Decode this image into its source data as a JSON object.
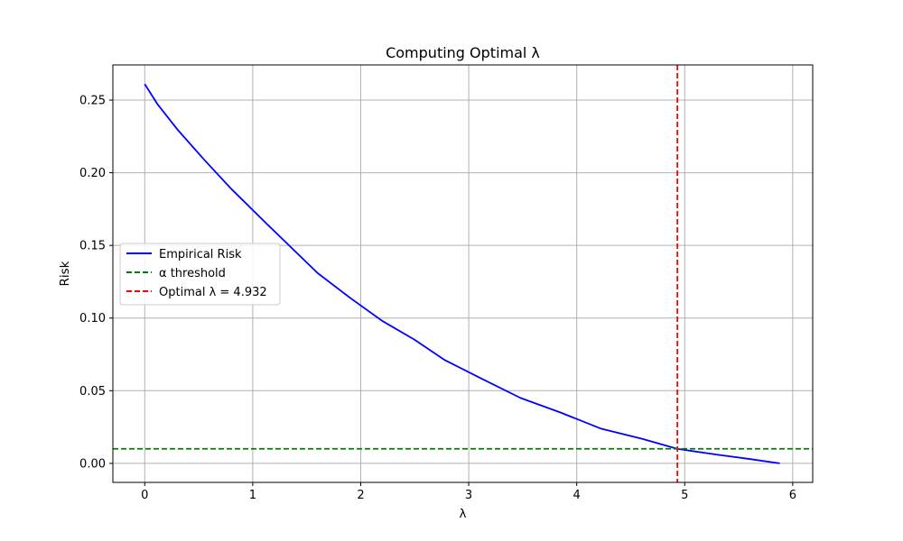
{
  "chart_data": {
    "type": "line",
    "title": "Computing Optimal λ",
    "xlabel": "λ",
    "ylabel": "Risk",
    "xlim": [
      -0.295,
      6.185
    ],
    "ylim": [
      -0.0131,
      0.2742
    ],
    "xticks": [
      0,
      1,
      2,
      3,
      4,
      5,
      6
    ],
    "yticks": [
      0.0,
      0.05,
      0.1,
      0.15,
      0.2,
      0.25
    ],
    "xtick_labels": [
      "0",
      "1",
      "2",
      "3",
      "4",
      "5",
      "6"
    ],
    "ytick_labels": [
      "0.00",
      "0.05",
      "0.10",
      "0.15",
      "0.20",
      "0.25"
    ],
    "grid": true,
    "legend_position": "center-left",
    "series": [
      {
        "name": "Empirical Risk",
        "style": "solid",
        "color": "#0000ff",
        "x": [
          0.0,
          0.12,
          0.3,
          0.55,
          0.8,
          1.1,
          1.35,
          1.6,
          1.9,
          2.2,
          2.5,
          2.78,
          3.1,
          3.48,
          3.85,
          4.22,
          4.6,
          4.93,
          5.3,
          5.6,
          5.88
        ],
        "y": [
          0.261,
          0.247,
          0.23,
          0.209,
          0.189,
          0.167,
          0.149,
          0.131,
          0.114,
          0.098,
          0.085,
          0.071,
          0.059,
          0.045,
          0.035,
          0.024,
          0.017,
          0.01,
          0.006,
          0.003,
          0.0
        ]
      },
      {
        "name": "α threshold",
        "style": "dashed",
        "color": "#008000",
        "orientation": "horizontal",
        "value": 0.01
      },
      {
        "name": "Optimal λ = 4.932",
        "style": "dashed",
        "color": "#ff0000",
        "orientation": "vertical",
        "value": 4.932
      }
    ]
  }
}
